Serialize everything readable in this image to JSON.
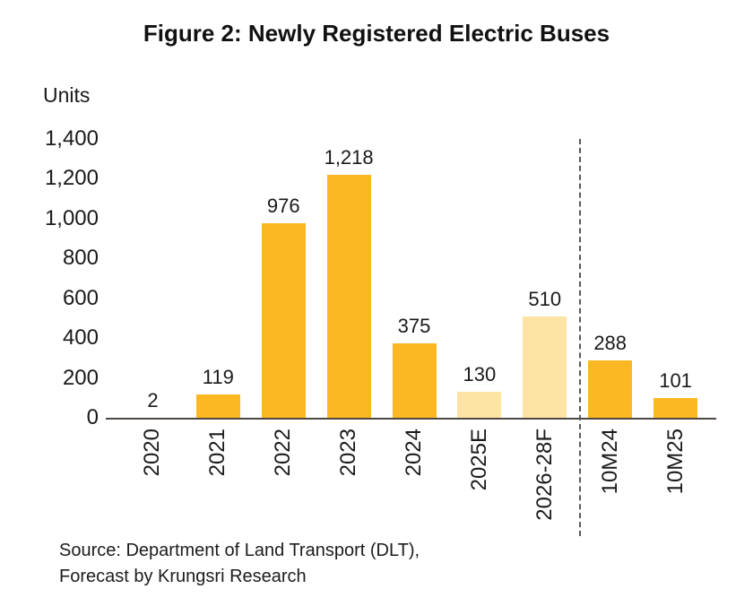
{
  "figure": {
    "title": "Figure 2: Newly Registered Electric Buses",
    "units_label": "Units",
    "source_line1": "Source: Department of Land Transport (DLT),",
    "source_line2": "Forecast by Krungsri Research"
  },
  "chart_data": {
    "type": "bar",
    "title": "Figure 2: Newly Registered Electric Buses",
    "xlabel": "",
    "ylabel": "Units",
    "categories": [
      "2020",
      "2021",
      "2022",
      "2023",
      "2024",
      "2025E",
      "2026-28F",
      "10M24",
      "10M25"
    ],
    "values": [
      2,
      119,
      976,
      1218,
      375,
      130,
      510,
      288,
      101
    ],
    "value_labels": [
      "2",
      "119",
      "976",
      "1,218",
      "375",
      "130",
      "510",
      "288",
      "101"
    ],
    "forecast_flags": [
      false,
      false,
      false,
      false,
      false,
      true,
      true,
      false,
      false
    ],
    "ylim": [
      0,
      1400
    ],
    "yticks": [
      0,
      200,
      400,
      600,
      800,
      1000,
      1200,
      1400
    ],
    "ytick_labels": [
      "0",
      "200",
      "400",
      "600",
      "800",
      "1,000",
      "1,200",
      "1,400"
    ],
    "grid": false,
    "legend": false,
    "separator_after_index": 6,
    "colors": {
      "bar_actual": "#FCB823",
      "bar_forecast": "#FDE3A4",
      "axis_line": "#4d4743",
      "separator_line": "#595959"
    }
  }
}
